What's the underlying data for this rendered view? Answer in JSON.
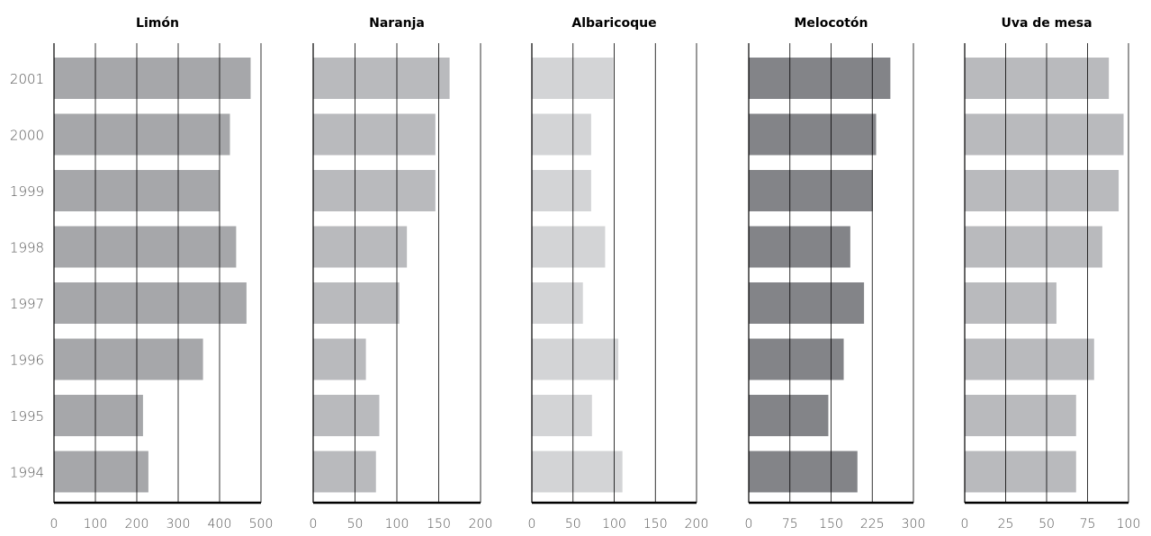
{
  "chart_data": [
    {
      "type": "bar",
      "orientation": "horizontal",
      "title": "Limón",
      "categories": [
        "2001",
        "2000",
        "1999",
        "1998",
        "1997",
        "1996",
        "1995",
        "1994"
      ],
      "values": [
        475,
        425,
        400,
        440,
        465,
        360,
        215,
        228
      ],
      "xlim": [
        0,
        500
      ],
      "xticks": [
        "0",
        "100",
        "200",
        "300",
        "400",
        "500"
      ],
      "color": "#a6a7aa",
      "grid": true
    },
    {
      "type": "bar",
      "orientation": "horizontal",
      "title": "Naranja",
      "categories": [
        "2001",
        "2000",
        "1999",
        "1998",
        "1997",
        "1996",
        "1995",
        "1994"
      ],
      "values": [
        163,
        146,
        146,
        112,
        103,
        63,
        79,
        75
      ],
      "xlim": [
        0,
        200
      ],
      "xticks": [
        "0",
        "50",
        "100",
        "150",
        "200"
      ],
      "color": "#b9babd",
      "grid": true
    },
    {
      "type": "bar",
      "orientation": "horizontal",
      "title": "Albaricoque",
      "categories": [
        "2001",
        "2000",
        "1999",
        "1998",
        "1997",
        "1996",
        "1995",
        "1994"
      ],
      "values": [
        99,
        72,
        72,
        89,
        62,
        105,
        73,
        110
      ],
      "xlim": [
        0,
        200
      ],
      "xticks": [
        "0",
        "50",
        "100",
        "150",
        "200"
      ],
      "color": "#d3d4d6",
      "grid": true
    },
    {
      "type": "bar",
      "orientation": "horizontal",
      "title": "Melocotón",
      "categories": [
        "2001",
        "2000",
        "1999",
        "1998",
        "1997",
        "1996",
        "1995",
        "1994"
      ],
      "values": [
        258,
        232,
        226,
        185,
        210,
        173,
        145,
        198
      ],
      "xlim": [
        0,
        300
      ],
      "xticks": [
        "0",
        "75",
        "150",
        "225",
        "300"
      ],
      "color": "#838488",
      "grid": true
    },
    {
      "type": "bar",
      "orientation": "horizontal",
      "title": "Uva de mesa",
      "categories": [
        "2001",
        "2000",
        "1999",
        "1998",
        "1997",
        "1996",
        "1995",
        "1994"
      ],
      "values": [
        88,
        97,
        94,
        84,
        56,
        79,
        68,
        68
      ],
      "xlim": [
        0,
        100
      ],
      "xticks": [
        "0",
        "25",
        "50",
        "75",
        "100"
      ],
      "color": "#b9babd",
      "grid": true
    }
  ]
}
